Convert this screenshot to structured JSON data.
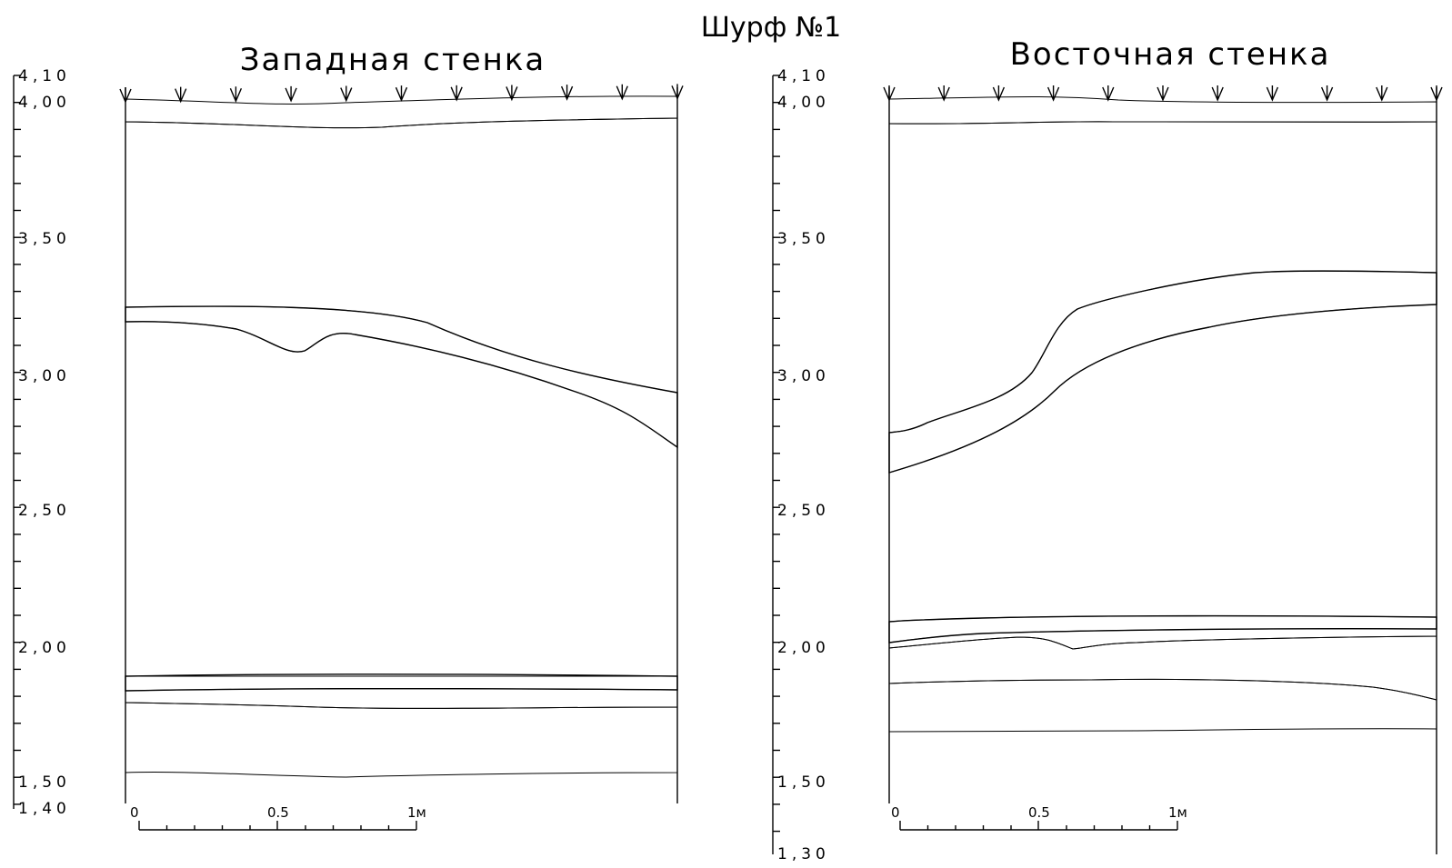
{
  "title": "Шурф №1",
  "walls": [
    {
      "name": "Западная стенка",
      "axis_labels": [
        "4,10",
        "4,00",
        "3,50",
        "3,00",
        "2,50",
        "2,00",
        "1,50",
        "1,40"
      ],
      "scale_labels": [
        "0",
        "0.5",
        "1м"
      ]
    },
    {
      "name": "Восточная стенка",
      "axis_labels": [
        "4,10",
        "4,00",
        "3,50",
        "3,00",
        "2,50",
        "2,00",
        "1,50",
        "1,30"
      ],
      "scale_labels": [
        "0",
        "0.5",
        "1м"
      ]
    }
  ]
}
